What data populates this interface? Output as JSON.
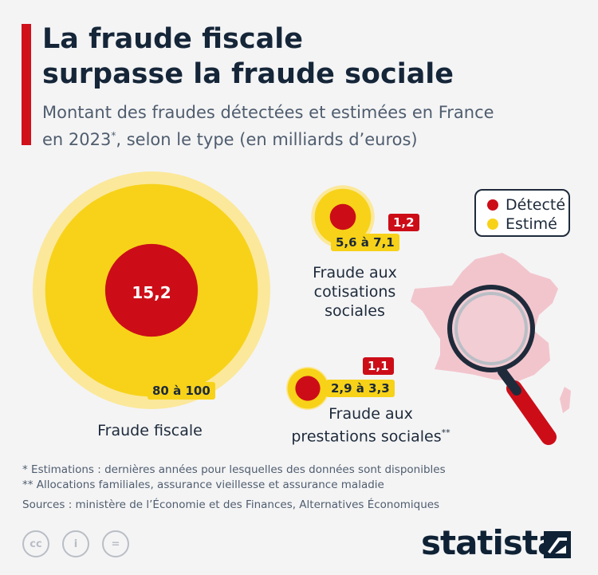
{
  "header": {
    "title_line1": "La fraude fiscale",
    "title_line2": "surpasse la fraude sociale",
    "subtitle_line1": "Montant des fraudes détectées et estimées en France",
    "subtitle_line2_a": "en 2023",
    "subtitle_line2_sup": "*",
    "subtitle_line2_b": ", selon le type (en milliards d’euros)"
  },
  "legend": {
    "detected": "Détecté",
    "estimated": "Estimé"
  },
  "colors": {
    "detected": "#cc0d18",
    "estimated": "#f7d219",
    "estimated_halo": "#fbe89a",
    "map": "#f2c5cc",
    "accent": "#d0101b"
  },
  "chart_data": {
    "type": "bubble",
    "title": "La fraude fiscale surpasse la fraude sociale",
    "unit": "milliards d’euros",
    "year": 2023,
    "series": [
      {
        "name": "Détecté"
      },
      {
        "name": "Estimé"
      }
    ],
    "categories": [
      {
        "name": "Fraude fiscale",
        "name_sup": "",
        "detected": 15.2,
        "detected_label": "15,2",
        "estimated_min": 80,
        "estimated_max": 100,
        "estimated_label": "80 à 100"
      },
      {
        "name": "Fraude aux cotisations sociales",
        "name_sup": "",
        "detected": 1.2,
        "detected_label": "1,2",
        "estimated_min": 5.6,
        "estimated_max": 7.1,
        "estimated_label": "5,6 à 7,1"
      },
      {
        "name": "Fraude aux prestations sociales",
        "name_sup": "**",
        "detected": 1.1,
        "detected_label": "1,1",
        "estimated_min": 2.9,
        "estimated_max": 3.3,
        "estimated_label": "2,9 à 3,3"
      }
    ]
  },
  "labels": {
    "fiscale": "Fraude fiscale",
    "cotisations_l1": "Fraude aux",
    "cotisations_l2": "cotisations",
    "cotisations_l3": "sociales",
    "prestations_l1": "Fraude aux",
    "prestations_l2": "prestations sociales",
    "prestations_sup": "**"
  },
  "footnotes": {
    "note1": "*   Estimations : dernières années pour lesquelles des données sont disponibles",
    "note2": "** Allocations familiales, assurance vieillesse et assurance maladie",
    "sources": "Sources : ministère de l’Économie et des Finances, Alternatives Économiques"
  },
  "footer": {
    "brand": "statista",
    "cc_icons": [
      "cc-icon",
      "by-icon",
      "nd-icon"
    ],
    "cc_glyphs": [
      "cc",
      "i",
      "="
    ]
  }
}
